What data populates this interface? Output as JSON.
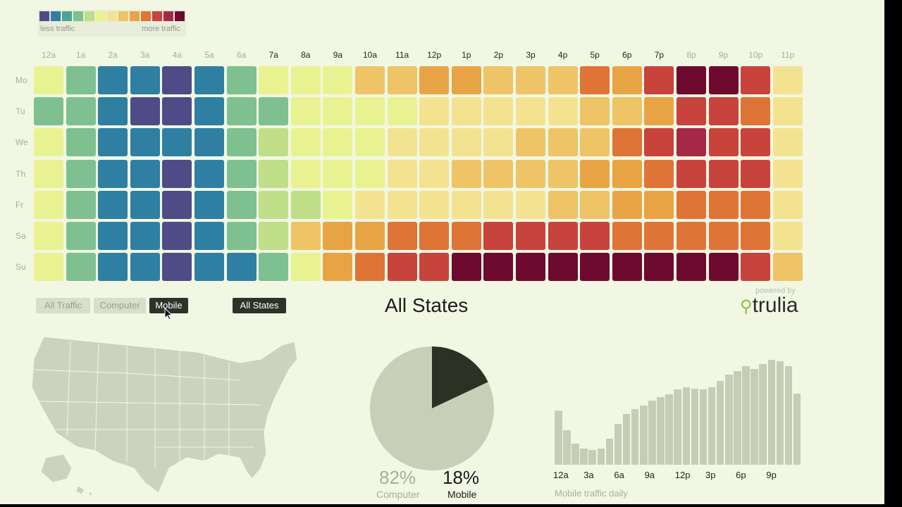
{
  "legend": {
    "low_label": "less traffic",
    "high_label": "more traffic",
    "colors": [
      "#4e4c86",
      "#2f7fa2",
      "#49a595",
      "#7fc090",
      "#c0dd88",
      "#e9f290",
      "#f3e391",
      "#eec466",
      "#e8a444",
      "#df7437",
      "#c8433c",
      "#a52846",
      "#6e0a2e"
    ]
  },
  "controls": {
    "buttons": [
      {
        "label": "All Traffic",
        "active": false
      },
      {
        "label": "Computer",
        "active": false
      },
      {
        "label": "Mobile",
        "active": true
      }
    ],
    "state_button": "All States"
  },
  "view_title": "All States",
  "brand": {
    "powered_by": "powered by",
    "name": "trulia"
  },
  "chart_data": [
    {
      "type": "heatmap",
      "title": "",
      "x_labels": [
        "12a",
        "1a",
        "2a",
        "3a",
        "4a",
        "5a",
        "6a",
        "7a",
        "8a",
        "9a",
        "10a",
        "11a",
        "12p",
        "1p",
        "2p",
        "3p",
        "4p",
        "5p",
        "6p",
        "7p",
        "8p",
        "9p",
        "10p",
        "11p"
      ],
      "x_label_emphasis": [
        false,
        false,
        false,
        false,
        false,
        false,
        false,
        true,
        true,
        true,
        true,
        true,
        true,
        true,
        true,
        true,
        true,
        true,
        true,
        true,
        false,
        false,
        false,
        false
      ],
      "y_labels": [
        "Mo",
        "Tu",
        "We",
        "Th",
        "Fr",
        "Sa",
        "Su"
      ],
      "scale_min_label": "less traffic",
      "scale_max_label": "more traffic",
      "values": [
        [
          5,
          3,
          1,
          1,
          0,
          1,
          3,
          5,
          5,
          5,
          7,
          7,
          8,
          8,
          7,
          7,
          7,
          9,
          8,
          10,
          12,
          12,
          10,
          6
        ],
        [
          3,
          3,
          1,
          0,
          0,
          1,
          3,
          3,
          5,
          5,
          5,
          5,
          6,
          6,
          6,
          6,
          6,
          7,
          7,
          8,
          10,
          10,
          9,
          6
        ],
        [
          5,
          3,
          1,
          1,
          1,
          1,
          3,
          4,
          5,
          5,
          5,
          6,
          6,
          6,
          6,
          7,
          7,
          7,
          9,
          10,
          11,
          10,
          10,
          6
        ],
        [
          5,
          3,
          1,
          1,
          0,
          1,
          3,
          4,
          5,
          5,
          5,
          6,
          6,
          7,
          7,
          7,
          7,
          8,
          8,
          9,
          10,
          10,
          10,
          6
        ],
        [
          5,
          3,
          1,
          1,
          0,
          1,
          3,
          4,
          4,
          5,
          6,
          6,
          6,
          6,
          6,
          6,
          7,
          7,
          8,
          8,
          9,
          9,
          9,
          6
        ],
        [
          5,
          3,
          1,
          1,
          0,
          1,
          3,
          4,
          7,
          8,
          8,
          9,
          9,
          9,
          10,
          10,
          10,
          10,
          9,
          9,
          9,
          9,
          9,
          6
        ],
        [
          5,
          3,
          1,
          1,
          0,
          1,
          1,
          3,
          5,
          8,
          9,
          10,
          10,
          12,
          12,
          12,
          12,
          12,
          12,
          12,
          12,
          12,
          10,
          7
        ]
      ]
    },
    {
      "type": "pie",
      "title": "",
      "slices": [
        {
          "name": "Computer",
          "value": 82,
          "label": "82%",
          "color": "#c8ceb8"
        },
        {
          "name": "Mobile",
          "value": 18,
          "label": "18%",
          "color": "#2b3223"
        }
      ]
    },
    {
      "type": "bar",
      "title": "",
      "caption": "Mobile traffic daily",
      "tick_labels": [
        "12a",
        "3a",
        "6a",
        "9a",
        "12p",
        "3p",
        "6p",
        "9p"
      ],
      "values": [
        44,
        28,
        17,
        13,
        12,
        13,
        21,
        33,
        41,
        45,
        48,
        52,
        55,
        57,
        61,
        63,
        62,
        61,
        63,
        68,
        73,
        76,
        80,
        78,
        82,
        85,
        84,
        80,
        58
      ],
      "ylim": [
        0,
        100
      ],
      "color": "#c6ccb6"
    }
  ]
}
